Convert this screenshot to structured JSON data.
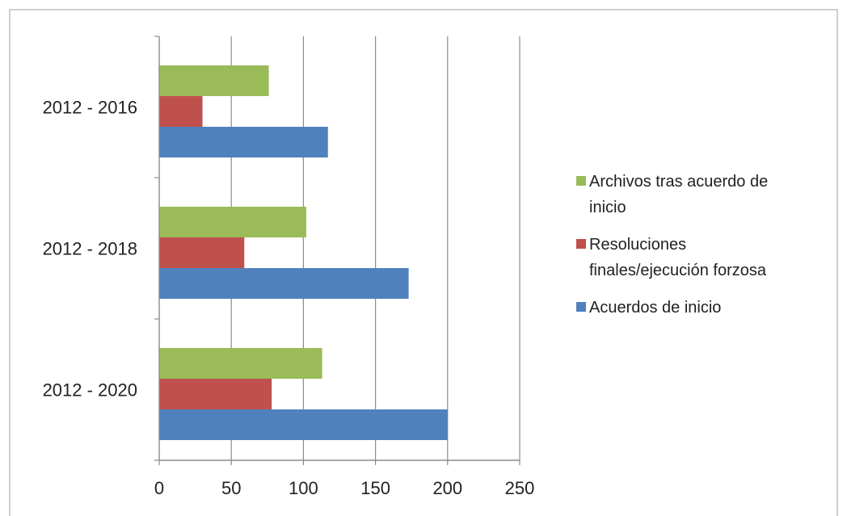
{
  "chart_data": {
    "type": "bar",
    "orientation": "horizontal",
    "categories": [
      "2012 - 2016",
      "2012 - 2018",
      "2012 - 2020"
    ],
    "series": [
      {
        "name": "Archivos tras acuerdo de inicio",
        "values": [
          76,
          102,
          113
        ],
        "color": "#9bbb59"
      },
      {
        "name": "Resoluciones finales/ejecución forzosa",
        "values": [
          30,
          59,
          78
        ],
        "color": "#c0504d"
      },
      {
        "name": "Acuerdos de inicio",
        "values": [
          117,
          173,
          200
        ],
        "color": "#4f81bd"
      }
    ],
    "legend_lines": [
      [
        "Archivos tras acuerdo de",
        "inicio"
      ],
      [
        "Resoluciones",
        "finales/ejecución forzosa"
      ],
      [
        "Acuerdos de inicio"
      ]
    ],
    "xlim": [
      0,
      250
    ],
    "xticks": [
      0,
      50,
      100,
      150,
      200,
      250
    ],
    "grid": true,
    "legend_position": "right"
  }
}
